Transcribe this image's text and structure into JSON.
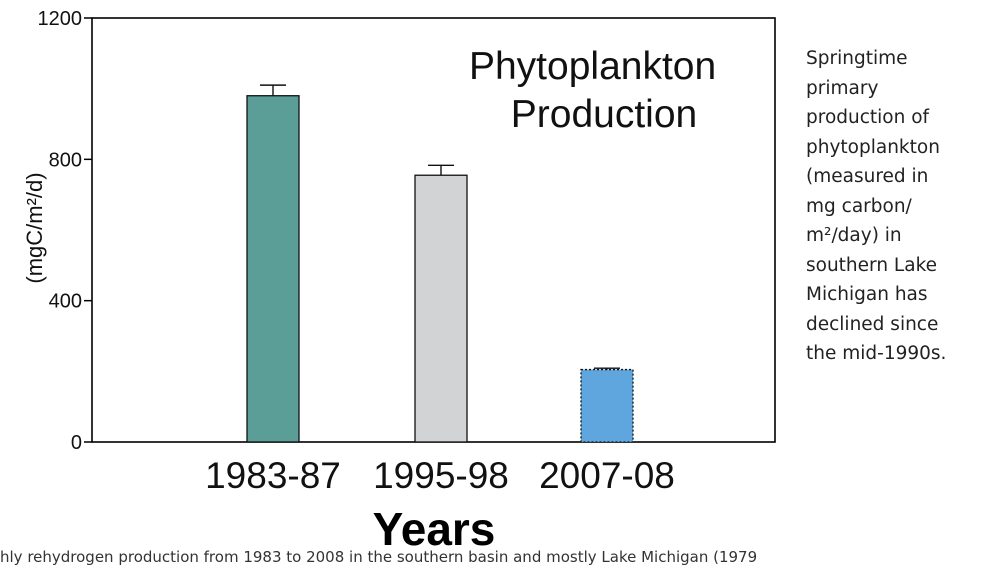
{
  "chart_data": {
    "type": "bar",
    "title": "Phytoplankton\nProduction",
    "ylabel": "(mgC/m²/d)",
    "xlabel": "Years",
    "categories": [
      "1983-87",
      "1995-98",
      "2007-08"
    ],
    "values": [
      980,
      755,
      205
    ],
    "error": [
      30,
      28,
      4
    ],
    "ylim": [
      0,
      1200
    ],
    "yticks": [
      0,
      400,
      800,
      1200
    ],
    "colors": [
      "#5b9e97",
      "#d2d3d5",
      "#5ea6dd"
    ],
    "grid": false,
    "legend": "none"
  },
  "caption": "Springtime\nprimary\nproduction of\nphytoplankton\n(measured in\nmg carbon/\nm²/day) in\nsouthern Lake\nMichigan has\ndeclined since\nthe mid-1990s.",
  "footer": "hly rehydrogen production from 1983 to 2008 in the southern basin and mostly Lake Michigan (1979"
}
